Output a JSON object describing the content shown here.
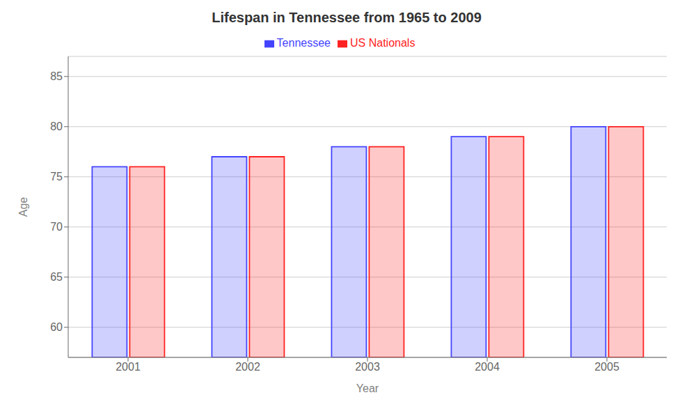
{
  "chart_data": {
    "type": "bar",
    "title": "Lifespan in Tennessee from 1965 to 2009",
    "x_label": "Year",
    "y_label": "Age",
    "categories": [
      "2001",
      "2002",
      "2003",
      "2004",
      "2005"
    ],
    "series": [
      {
        "name": "Tennessee",
        "color": "#4444ff",
        "values": [
          76,
          77,
          78,
          79,
          80
        ]
      },
      {
        "name": "US Nationals",
        "color": "#ff2222",
        "values": [
          76,
          77,
          78,
          79,
          80
        ]
      }
    ],
    "ylim": [
      57,
      87
    ],
    "yticks": [
      60,
      65,
      70,
      75,
      80,
      85
    ],
    "grid": true,
    "legend": "top"
  }
}
